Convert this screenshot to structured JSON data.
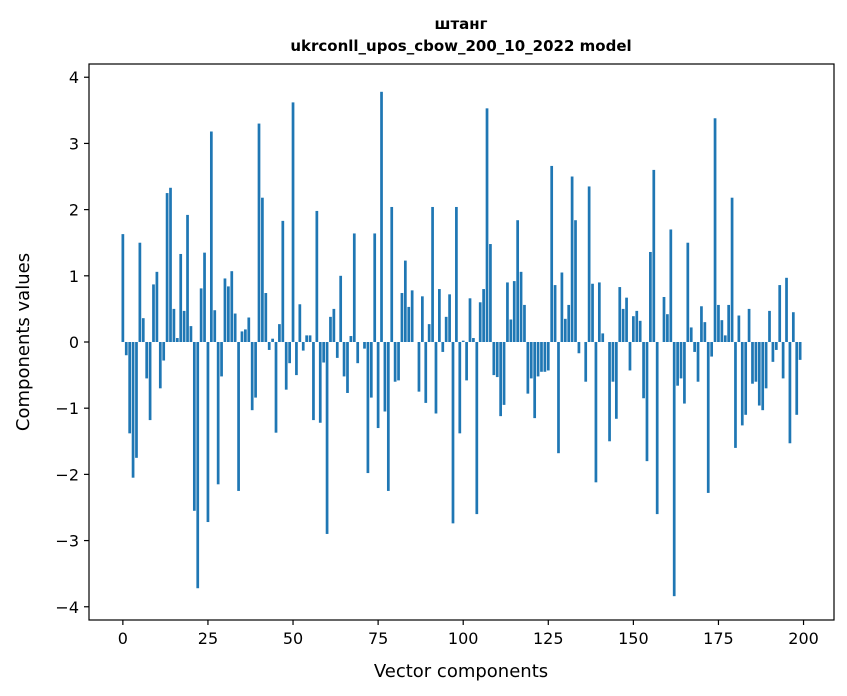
{
  "chart_data": {
    "type": "bar",
    "title_line1": "штанг",
    "title_line2": "ukrconll_upos_cbow_200_10_2022 model",
    "xlabel": "Vector components",
    "ylabel": "Components values",
    "xlim": [
      -9.95,
      208.95
    ],
    "ylim": [
      -4.2,
      4.2
    ],
    "xticks": [
      0,
      25,
      50,
      75,
      100,
      125,
      150,
      175,
      200
    ],
    "xtick_labels": [
      "0",
      "25",
      "50",
      "75",
      "100",
      "125",
      "150",
      "175",
      "200"
    ],
    "yticks": [
      -4,
      -3,
      -2,
      -1,
      0,
      1,
      2,
      3,
      4
    ],
    "ytick_labels": [
      "−4",
      "−3",
      "−2",
      "−1",
      "0",
      "1",
      "2",
      "3",
      "4"
    ],
    "bar_color": "#1f77b4",
    "grid": false,
    "values": [
      1.63,
      -0.2,
      -1.38,
      -2.05,
      -1.75,
      1.5,
      0.36,
      -0.55,
      -1.18,
      0.87,
      1.06,
      -0.7,
      -0.28,
      2.25,
      2.33,
      0.5,
      0.06,
      1.33,
      0.47,
      1.92,
      0.24,
      -2.55,
      -3.72,
      0.81,
      1.35,
      -2.72,
      3.18,
      0.48,
      -2.15,
      -0.52,
      0.96,
      0.84,
      1.07,
      0.43,
      -2.25,
      0.16,
      0.19,
      0.37,
      -1.03,
      -0.84,
      3.3,
      2.18,
      0.74,
      -0.12,
      0.05,
      -1.37,
      0.27,
      1.83,
      -0.72,
      -0.32,
      3.62,
      -0.5,
      0.57,
      -0.13,
      0.1,
      0.1,
      -1.18,
      1.98,
      -1.22,
      -0.31,
      -2.9,
      0.38,
      0.5,
      -0.24,
      1.0,
      -0.52,
      -0.77,
      0.09,
      1.64,
      -0.32,
      0.0,
      -0.1,
      -1.98,
      -0.84,
      1.64,
      -1.3,
      3.78,
      -1.05,
      -2.25,
      2.04,
      -0.6,
      -0.58,
      0.74,
      1.23,
      0.53,
      0.78,
      0.0,
      -0.75,
      0.69,
      -0.92,
      0.27,
      2.04,
      -1.08,
      0.8,
      -0.15,
      0.38,
      0.72,
      -2.74,
      2.04,
      -1.38,
      0.02,
      -0.58,
      0.66,
      0.06,
      -2.6,
      0.6,
      0.8,
      3.53,
      1.48,
      -0.5,
      -0.53,
      -1.12,
      -0.95,
      0.9,
      0.34,
      0.92,
      1.84,
      1.06,
      0.56,
      -0.78,
      -0.55,
      -1.15,
      -0.52,
      -0.45,
      -0.45,
      -0.43,
      2.66,
      0.86,
      -1.68,
      1.05,
      0.35,
      0.56,
      2.5,
      1.84,
      -0.17,
      0.0,
      -0.6,
      2.35,
      0.88,
      -2.12,
      0.9,
      0.13,
      0.0,
      -1.5,
      -0.6,
      -1.16,
      0.83,
      0.5,
      0.67,
      -0.43,
      0.39,
      0.47,
      0.32,
      -0.85,
      -1.8,
      1.36,
      2.6,
      -2.6,
      0.0,
      0.68,
      0.42,
      1.7,
      -3.84,
      -0.66,
      -0.55,
      -0.93,
      1.5,
      0.22,
      -0.15,
      -0.6,
      0.54,
      0.3,
      -2.28,
      -0.22,
      3.38,
      0.56,
      0.33,
      0.1,
      0.56,
      2.18,
      -1.6,
      0.4,
      -1.26,
      -1.1,
      0.5,
      -0.63,
      -0.6,
      -0.96,
      -1.03,
      -0.7,
      0.47,
      -0.3,
      -0.12,
      0.86,
      -0.55,
      0.97,
      -1.53,
      0.45,
      -1.1,
      -0.27
    ]
  }
}
